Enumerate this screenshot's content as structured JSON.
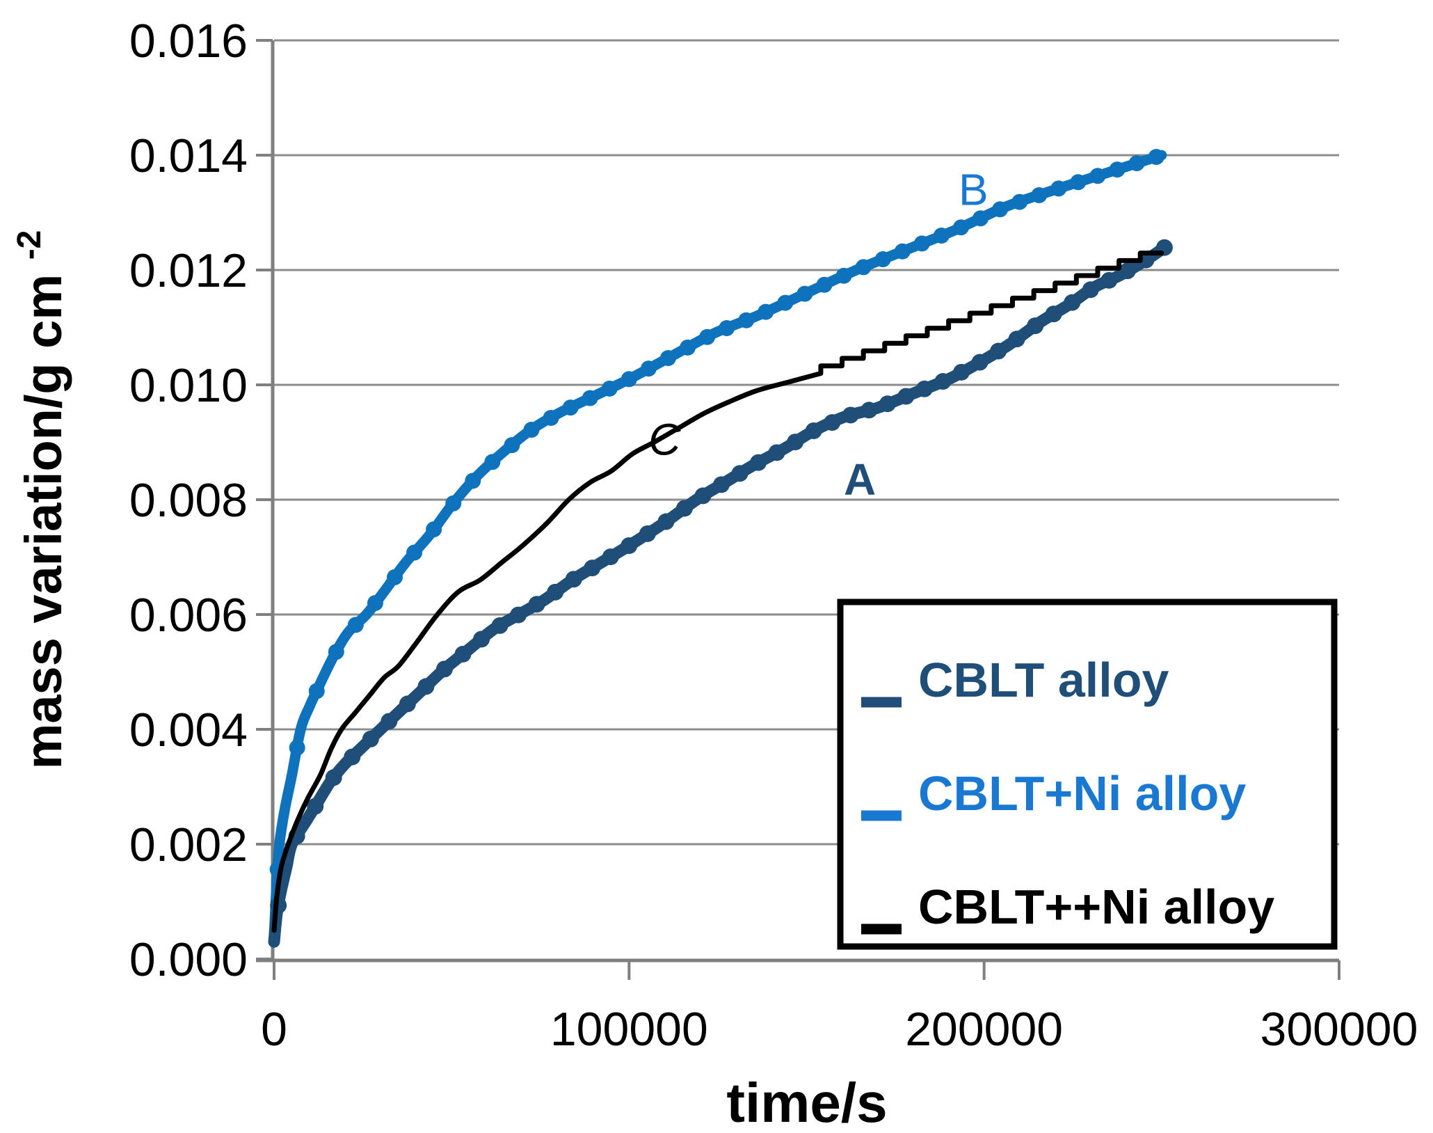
{
  "chart_data": {
    "type": "line",
    "title": "",
    "xlabel": "time/s",
    "ylabel_base": "mass variation/g cm",
    "ylabel_sup": "-2",
    "xlim": [
      0,
      300000
    ],
    "ylim": [
      0.0,
      0.016
    ],
    "grid": "horizontal",
    "x_ticks": [
      {
        "value": 0,
        "label": "0"
      },
      {
        "value": 100000,
        "label": "100000"
      },
      {
        "value": 200000,
        "label": "200000"
      },
      {
        "value": 300000,
        "label": "300000"
      }
    ],
    "y_ticks": [
      {
        "value": 0.0,
        "label": "0.000"
      },
      {
        "value": 0.002,
        "label": "0.002"
      },
      {
        "value": 0.004,
        "label": "0.004"
      },
      {
        "value": 0.006,
        "label": "0.006"
      },
      {
        "value": 0.008,
        "label": "0.008"
      },
      {
        "value": 0.01,
        "label": "0.010"
      },
      {
        "value": 0.012,
        "label": "0.012"
      },
      {
        "value": 0.014,
        "label": "0.014"
      },
      {
        "value": 0.016,
        "label": "0.016"
      }
    ],
    "colors": {
      "navy": "#1F4E79",
      "bright_blue_curve": "#0E72BD",
      "bright_blue_text": "#1878D2",
      "black": "#000000",
      "gridline": "#8C8C8C",
      "axis": "#7F7F7F"
    },
    "series": [
      {
        "name": "CBLT alloy",
        "letter": "A",
        "color": "#1F4E79",
        "style": "thick-line-with-dots",
        "marker_dt": 5200,
        "points": [
          [
            0,
            0.0003
          ],
          [
            800,
            0.0008
          ],
          [
            2000,
            0.0012
          ],
          [
            3500,
            0.0016
          ],
          [
            5000,
            0.002
          ],
          [
            9000,
            0.0024
          ],
          [
            12000,
            0.0027
          ],
          [
            16000,
            0.0031
          ],
          [
            20000,
            0.0034
          ],
          [
            25000,
            0.0037
          ],
          [
            30000,
            0.004
          ],
          [
            36000,
            0.00435
          ],
          [
            42000,
            0.0047
          ],
          [
            48000,
            0.00505
          ],
          [
            55000,
            0.0054
          ],
          [
            62000,
            0.00575
          ],
          [
            69000,
            0.006
          ],
          [
            76000,
            0.00625
          ],
          [
            84000,
            0.0066
          ],
          [
            92000,
            0.0069
          ],
          [
            100000,
            0.0072
          ],
          [
            110000,
            0.0076
          ],
          [
            119000,
            0.008
          ],
          [
            127000,
            0.0083
          ],
          [
            135000,
            0.0086
          ],
          [
            144000,
            0.0089
          ],
          [
            152000,
            0.0092
          ],
          [
            161000,
            0.00945
          ],
          [
            170000,
            0.0096
          ],
          [
            180000,
            0.00985
          ],
          [
            190000,
            0.0101
          ],
          [
            199000,
            0.0104
          ],
          [
            207000,
            0.0107
          ],
          [
            216000,
            0.0111
          ],
          [
            224000,
            0.0114
          ],
          [
            231000,
            0.0117
          ],
          [
            238000,
            0.0119
          ],
          [
            245000,
            0.01215
          ],
          [
            251000,
            0.0124
          ]
        ]
      },
      {
        "name": "CBLT+Ni alloy",
        "letter": "B",
        "color": "#0E72BD",
        "style": "dotted-curve",
        "marker_dt": 5500,
        "points": [
          [
            0,
            0.0004
          ],
          [
            700,
            0.0013
          ],
          [
            1500,
            0.002
          ],
          [
            3000,
            0.0026
          ],
          [
            5000,
            0.0032
          ],
          [
            7500,
            0.004
          ],
          [
            10000,
            0.0044
          ],
          [
            13000,
            0.0048
          ],
          [
            17000,
            0.0053
          ],
          [
            21000,
            0.0057
          ],
          [
            26000,
            0.006
          ],
          [
            31000,
            0.0064
          ],
          [
            37000,
            0.0069
          ],
          [
            44000,
            0.0074
          ],
          [
            50000,
            0.0079
          ],
          [
            57000,
            0.0084
          ],
          [
            64000,
            0.0088
          ],
          [
            72000,
            0.0092
          ],
          [
            80000,
            0.0095
          ],
          [
            90000,
            0.0098
          ],
          [
            100000,
            0.0101
          ],
          [
            112000,
            0.0105
          ],
          [
            124000,
            0.0109
          ],
          [
            136000,
            0.0112
          ],
          [
            150000,
            0.0116
          ],
          [
            164000,
            0.012
          ],
          [
            178000,
            0.01235
          ],
          [
            192000,
            0.0127
          ],
          [
            206000,
            0.0131
          ],
          [
            220000,
            0.0134
          ],
          [
            235000,
            0.0137
          ],
          [
            250000,
            0.014
          ]
        ]
      },
      {
        "name": "CBLT++Ni alloy",
        "letter": "C",
        "color": "#000000",
        "style": "thin-line-with-staircase",
        "points": [
          [
            0,
            0.0005
          ],
          [
            800,
            0.0011
          ],
          [
            2000,
            0.0016
          ],
          [
            4000,
            0.002
          ],
          [
            6500,
            0.0024
          ],
          [
            9500,
            0.0028
          ],
          [
            13000,
            0.0032
          ],
          [
            16000,
            0.00365
          ],
          [
            19000,
            0.004
          ],
          [
            23000,
            0.0043
          ],
          [
            27000,
            0.0046
          ],
          [
            31000,
            0.0049
          ],
          [
            35000,
            0.0051
          ],
          [
            40000,
            0.0055
          ],
          [
            46000,
            0.006
          ],
          [
            52000,
            0.0064
          ],
          [
            58000,
            0.0066
          ],
          [
            64000,
            0.0069
          ],
          [
            70000,
            0.0072
          ],
          [
            77000,
            0.0076
          ],
          [
            83000,
            0.008
          ],
          [
            89000,
            0.0083
          ],
          [
            95000,
            0.0085
          ],
          [
            101000,
            0.0088
          ],
          [
            107000,
            0.009
          ],
          [
            114000,
            0.00925
          ],
          [
            121000,
            0.0095
          ],
          [
            128000,
            0.0097
          ],
          [
            136000,
            0.0099
          ],
          [
            145000,
            0.01005
          ],
          [
            154000,
            0.0102
          ]
        ],
        "staircase": {
          "t_start": 154000,
          "t_end": 250000,
          "step_dt": 6000,
          "step_dm": 0.000131
        }
      }
    ],
    "curve_labels": [
      {
        "text": "A",
        "t": 165000,
        "m": 0.00835,
        "color": "#1F4E79",
        "weight": "bold",
        "style": "normal"
      },
      {
        "text": "B",
        "t": 197000,
        "m": 0.0134,
        "color": "#1878D2",
        "weight": "normal",
        "style": "normal"
      },
      {
        "text": "C",
        "t": 110000,
        "m": 0.00905,
        "color": "#000000",
        "weight": "normal",
        "style": "italic"
      }
    ],
    "legend": {
      "entries": [
        {
          "label": "CBLT alloy",
          "color": "#1F4E79"
        },
        {
          "label": "CBLT+Ni alloy",
          "color": "#1878D2"
        },
        {
          "label": "CBLT++Ni alloy",
          "color": "#000000"
        }
      ]
    }
  }
}
